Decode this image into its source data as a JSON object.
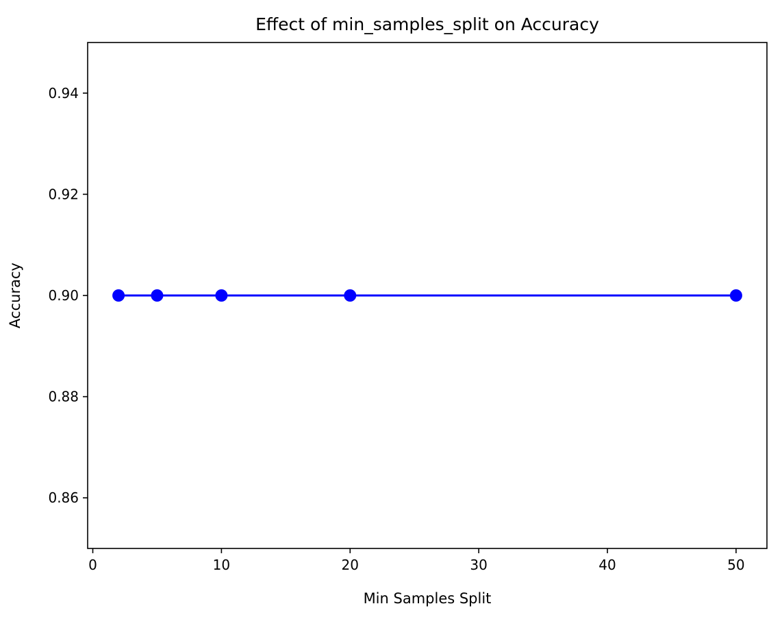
{
  "chart_data": {
    "type": "line",
    "title": "Effect of min_samples_split on Accuracy",
    "xlabel": "Min Samples Split",
    "ylabel": "Accuracy",
    "x": [
      2,
      5,
      10,
      20,
      50
    ],
    "series": [
      {
        "values": [
          0.9,
          0.9,
          0.9,
          0.9,
          0.9
        ],
        "color": "#0000ff",
        "marker": "circle"
      }
    ],
    "xlim": [
      -0.4,
      52.4
    ],
    "ylim": [
      0.85,
      0.95
    ],
    "xticks": [
      0,
      10,
      20,
      30,
      40,
      50
    ],
    "xtick_labels": [
      "0",
      "10",
      "20",
      "30",
      "40",
      "50"
    ],
    "yticks": [
      0.86,
      0.88,
      0.9,
      0.92,
      0.94
    ],
    "ytick_labels": [
      "0.86",
      "0.88",
      "0.90",
      "0.92",
      "0.94"
    ],
    "grid": false,
    "legend": "none"
  }
}
